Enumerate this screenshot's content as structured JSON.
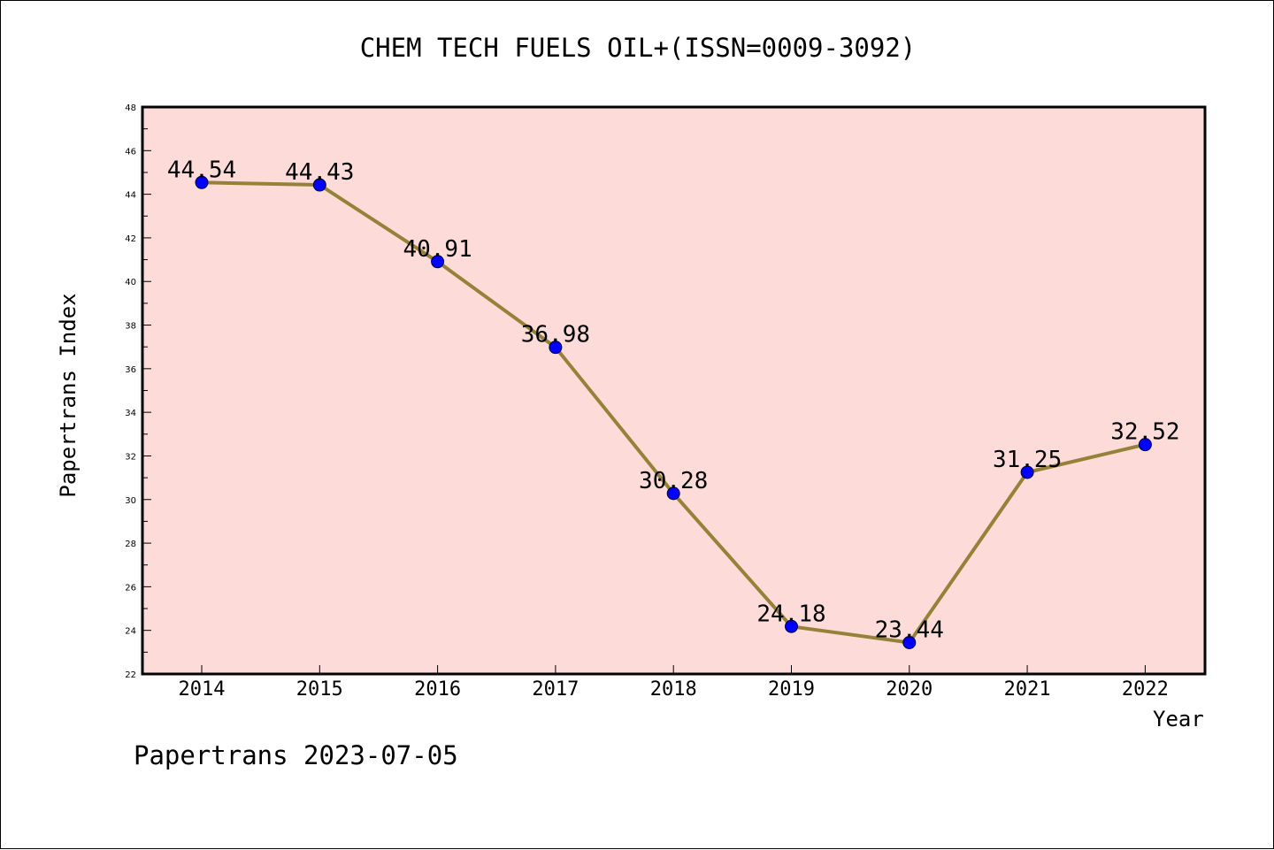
{
  "chart_data": {
    "type": "line",
    "title": "CHEM TECH FUELS OIL+(ISSN=0009-3092)",
    "xlabel": "Year",
    "ylabel": "Papertrans Index",
    "categories": [
      "2014",
      "2015",
      "2016",
      "2017",
      "2018",
      "2019",
      "2020",
      "2021",
      "2022"
    ],
    "series": [
      {
        "values": [
          44.54,
          44.43,
          40.91,
          36.98,
          30.28,
          24.18,
          23.44,
          31.25,
          32.52
        ]
      }
    ],
    "data_labels": [
      "44.54",
      "44.43",
      "40.91",
      "36.98",
      "30.28",
      "24.18",
      "23.44",
      "31.25",
      "32.52"
    ],
    "ylim": [
      22,
      48
    ],
    "yticks": [
      "22",
      "24",
      "26",
      "28",
      "30",
      "32",
      "34",
      "36",
      "38",
      "40",
      "42",
      "44",
      "46",
      "48"
    ],
    "grid": false,
    "colors": {
      "plot_background": "#fddbd8",
      "line": "#948238",
      "marker": "#0000ff"
    }
  },
  "footer": "Papertrans 2023-07-05"
}
